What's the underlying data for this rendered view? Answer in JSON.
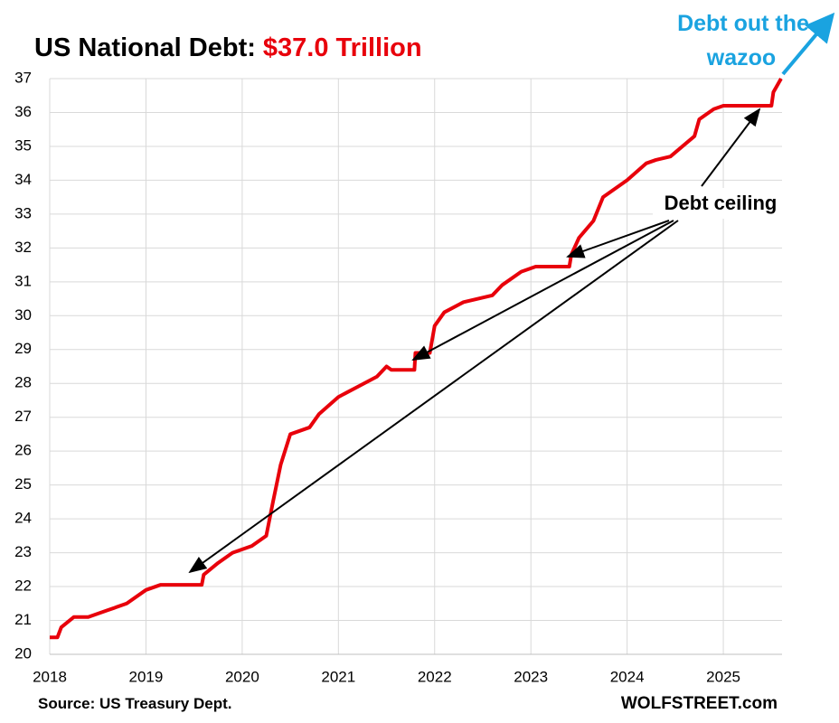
{
  "chart_data": {
    "type": "line",
    "title": "US National Debt:",
    "title_value": "$37.0 Trillion",
    "annotations": [
      "Debt out the",
      "wazoo",
      "Debt ceiling"
    ],
    "source": "Source: US Treasury Dept.",
    "credit": "WOLFSTREET.com",
    "xlim": [
      2018,
      2025.61
    ],
    "xticks": [
      2018,
      2019,
      2020,
      2021,
      2022,
      2023,
      2024,
      2025
    ],
    "ylim": [
      20,
      37
    ],
    "yticks": [
      20,
      21,
      22,
      23,
      24,
      25,
      26,
      27,
      28,
      29,
      30,
      31,
      32,
      33,
      34,
      35,
      36,
      37
    ],
    "grid": true,
    "x": [
      2018.0,
      2018.08,
      2018.12,
      2018.25,
      2018.4,
      2018.6,
      2018.8,
      2019.0,
      2019.15,
      2019.58,
      2019.6,
      2019.75,
      2019.9,
      2020.1,
      2020.25,
      2020.32,
      2020.4,
      2020.5,
      2020.7,
      2020.8,
      2021.0,
      2021.2,
      2021.4,
      2021.5,
      2021.55,
      2021.79,
      2021.8,
      2021.95,
      2022.0,
      2022.1,
      2022.3,
      2022.6,
      2022.7,
      2022.9,
      2023.0,
      2023.05,
      2023.4,
      2023.42,
      2023.5,
      2023.65,
      2023.75,
      2024.0,
      2024.2,
      2024.3,
      2024.45,
      2024.7,
      2024.75,
      2024.9,
      2025.0,
      2025.5,
      2025.52,
      2025.6
    ],
    "series": [
      {
        "color": "#e8000b",
        "values": [
          20.5,
          20.5,
          20.8,
          21.1,
          21.1,
          21.3,
          21.5,
          21.9,
          22.05,
          22.05,
          22.35,
          22.7,
          23.0,
          23.2,
          23.5,
          24.5,
          25.6,
          26.5,
          26.7,
          27.1,
          27.6,
          27.9,
          28.2,
          28.5,
          28.4,
          28.4,
          28.9,
          28.9,
          29.7,
          30.1,
          30.4,
          30.6,
          30.9,
          31.3,
          31.4,
          31.45,
          31.45,
          31.8,
          32.3,
          32.8,
          33.5,
          34.0,
          34.5,
          34.6,
          34.7,
          35.3,
          35.8,
          36.1,
          36.2,
          36.2,
          36.6,
          37.0
        ]
      }
    ]
  }
}
